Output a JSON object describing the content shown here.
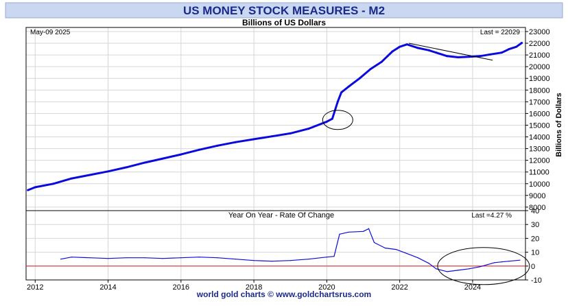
{
  "header": {
    "title": "US MONEY STOCK MEASURES - M2",
    "subtitle": "Billions of US Dollars"
  },
  "footer": {
    "credit": "world gold charts © www.goldchartsrus.com"
  },
  "colors": {
    "title_bg": "#c9d7f0",
    "title_text": "#1a2a8c",
    "series": "#0a0adc",
    "zero_line": "#e03030",
    "grid": "#d6d6d6",
    "annotation": "#000000"
  },
  "chart_data": [
    {
      "type": "line",
      "title": "US MONEY STOCK MEASURES - M2",
      "subtitle": "Billions of US Dollars",
      "date_label": "May-09  2025",
      "last_label": "Last = 22029",
      "ylabel": "Billions of Dollars",
      "ylim": [
        7700,
        23350
      ],
      "xlim": [
        2011.75,
        2025.45
      ],
      "grid": true,
      "y_ticks": [
        8000,
        9000,
        10000,
        11000,
        12000,
        13000,
        14000,
        15000,
        16000,
        17000,
        18000,
        19000,
        20000,
        21000,
        22000,
        23000
      ],
      "y_tick_labels": [
        "8000",
        "9000",
        "10000",
        "11000",
        "12000",
        "13000",
        "14000",
        "15000",
        "16000",
        "17000",
        "18000",
        "19000",
        "20000",
        "21000",
        "22000",
        "23000"
      ],
      "series": [
        {
          "name": "M2",
          "x": [
            2011.8,
            2012.0,
            2012.5,
            2013.0,
            2013.5,
            2014.0,
            2014.5,
            2015.0,
            2015.5,
            2016.0,
            2016.5,
            2017.0,
            2017.5,
            2018.0,
            2018.5,
            2019.0,
            2019.5,
            2020.0,
            2020.15,
            2020.3,
            2020.4,
            2020.6,
            2020.9,
            2021.2,
            2021.5,
            2021.8,
            2022.0,
            2022.2,
            2022.5,
            2022.8,
            2023.0,
            2023.3,
            2023.6,
            2023.9,
            2024.2,
            2024.5,
            2024.8,
            2025.0,
            2025.2,
            2025.35
          ],
          "values": [
            9450,
            9700,
            10000,
            10450,
            10750,
            11050,
            11400,
            11800,
            12150,
            12500,
            12900,
            13250,
            13550,
            13800,
            14050,
            14300,
            14700,
            15300,
            15550,
            17000,
            17800,
            18300,
            19000,
            19800,
            20400,
            21300,
            21700,
            21900,
            21600,
            21400,
            21200,
            20900,
            20800,
            20850,
            20900,
            21050,
            21200,
            21500,
            21700,
            22029
          ]
        }
      ],
      "annotations": [
        {
          "type": "ellipse",
          "label": "circle around early-2020 jump",
          "x": 2020.3,
          "y": 15450
        },
        {
          "type": "trendline",
          "from": [
            2022.25,
            22000
          ],
          "to": [
            2024.55,
            20550
          ]
        }
      ]
    },
    {
      "type": "line",
      "title": "Year On Year - Rate Of Change",
      "last_label": "Last =4.27 %",
      "ylim": [
        -10,
        40
      ],
      "xlim": [
        2011.75,
        2025.45
      ],
      "grid": true,
      "zero_line": true,
      "y_ticks": [
        -10,
        0,
        10,
        20,
        30,
        40
      ],
      "y_tick_labels": [
        "-10",
        "0",
        "10",
        "20",
        "30",
        "40"
      ],
      "x_ticks": [
        2012,
        2014,
        2016,
        2018,
        2020,
        2022,
        2024
      ],
      "x_tick_labels": [
        "2012",
        "2014",
        "2016",
        "2018",
        "2020",
        "2022",
        "2024"
      ],
      "series": [
        {
          "name": "YoY %",
          "x": [
            2012.7,
            2013.0,
            2013.5,
            2014.0,
            2014.5,
            2015.0,
            2015.5,
            2016.0,
            2016.5,
            2017.0,
            2017.5,
            2018.0,
            2018.5,
            2019.0,
            2019.5,
            2020.0,
            2020.2,
            2020.35,
            2020.6,
            2021.0,
            2021.15,
            2021.3,
            2021.6,
            2021.9,
            2022.2,
            2022.5,
            2022.8,
            2023.0,
            2023.3,
            2023.6,
            2023.9,
            2024.2,
            2024.4,
            2024.6,
            2024.8,
            2025.0,
            2025.3
          ],
          "values": [
            5,
            6.5,
            6,
            5.5,
            6,
            6,
            5.5,
            6,
            6.5,
            6,
            5,
            4,
            3.5,
            4,
            5,
            6.5,
            7,
            23,
            24.5,
            25,
            27,
            17,
            13,
            12,
            9,
            6,
            2,
            -2,
            -4,
            -3,
            -2,
            -0.5,
            1,
            2.5,
            3,
            3.5,
            4.27
          ]
        }
      ],
      "annotations": [
        {
          "type": "ellipse",
          "label": "circle around 2023-2025 trough and recovery",
          "x": 2024.3,
          "y": 0
        }
      ]
    }
  ]
}
